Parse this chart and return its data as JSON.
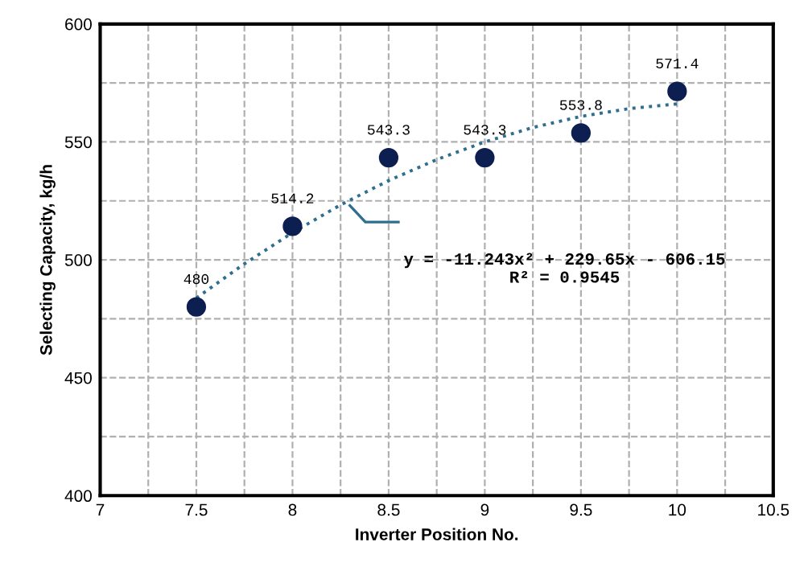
{
  "chart_data": {
    "type": "scatter",
    "xlabel": "Inverter Position No.",
    "ylabel": "Selecting Capacity, kg/h",
    "series": [
      {
        "color": "#0d1f50",
        "marker": "circle",
        "x": [
          7.5,
          8,
          8.5,
          9,
          9.5,
          10
        ],
        "values": [
          480,
          514.2,
          543.3,
          543.3,
          553.8,
          571.4
        ],
        "value_labels": [
          "480",
          "514.2",
          "543.3",
          "543.3",
          "553.8",
          "571.4"
        ]
      },
      {
        "type": "line",
        "color": "#2e6e8e",
        "line_style": "dotted",
        "marker": "none",
        "x": [
          7.5,
          7.75,
          8,
          8.25,
          8.5,
          8.75,
          9,
          9.25,
          9.5,
          9.75,
          10
        ],
        "values": [
          483.8,
          498.3,
          511.5,
          523.3,
          533.6,
          542.5,
          550.0,
          556.1,
          560.8,
          564.1,
          566.1
        ]
      }
    ],
    "annotations": [
      "y = -11.243x² + 229.65x - 606.15\nR² = 0.9545"
    ],
    "xlim": [
      7,
      10.5
    ],
    "xticks": [
      7,
      {
        "value": 7.25,
        "label": null
      },
      7.5,
      {
        "value": 7.75,
        "label": null
      },
      8,
      {
        "value": 8.25,
        "label": null
      },
      8.5,
      {
        "value": 8.75,
        "label": null
      },
      9,
      {
        "value": 9.25,
        "label": null
      },
      9.5,
      {
        "value": 9.75,
        "label": null
      },
      10,
      {
        "value": 10.25,
        "label": null
      },
      10.5
    ],
    "ylim": [
      400,
      600
    ],
    "yticks": [
      400,
      {
        "value": 425,
        "label": null
      },
      450,
      {
        "value": 475,
        "label": null
      },
      500,
      {
        "value": 525,
        "label": null
      },
      550,
      {
        "value": 575,
        "label": null
      },
      600
    ],
    "grid": true,
    "legend": false
  }
}
